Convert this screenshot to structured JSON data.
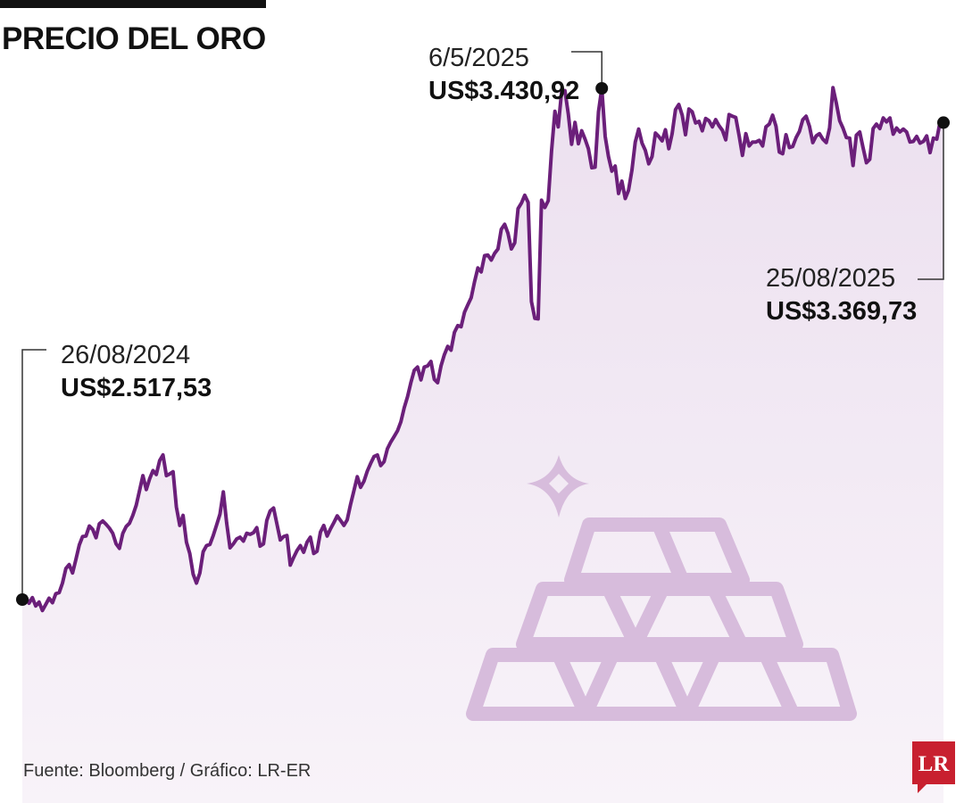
{
  "header": {
    "title": "PRECIO DEL ORO"
  },
  "annotations": {
    "start": {
      "date": "26/08/2024",
      "value": "US$2.517,53"
    },
    "peak": {
      "date": "6/5/2025",
      "value": "US$3.430,92"
    },
    "end": {
      "date": "25/08/2025",
      "value": "US$3.369,73"
    }
  },
  "footer": {
    "source": "Fuente: Bloomberg / Gráfico: LR-ER",
    "logo_text": "LR"
  },
  "colors": {
    "line": "#6b1f7a",
    "area_top": "#ece0ef",
    "area_bottom": "#f8f3f9",
    "illustration": "#d7bcdc",
    "logo": "#c8202f"
  },
  "chart_data": {
    "type": "area",
    "title": "PRECIO DEL ORO",
    "xlabel": "",
    "ylabel": "",
    "ylim": [
      2300,
      3500
    ],
    "grid": false,
    "legend": "none",
    "series": [
      {
        "values": [
          2517.53,
          2523,
          2511,
          2521,
          2506,
          2513,
          2498,
          2509,
          2520,
          2512,
          2528,
          2530,
          2547,
          2573,
          2580,
          2565,
          2589,
          2615,
          2630,
          2631,
          2649,
          2643,
          2628,
          2653,
          2658,
          2652,
          2645,
          2636,
          2617,
          2609,
          2636,
          2648,
          2654,
          2668,
          2686,
          2712,
          2739,
          2714,
          2733,
          2748,
          2741,
          2766,
          2776,
          2739,
          2742,
          2746,
          2683,
          2650,
          2668,
          2620,
          2600,
          2563,
          2547,
          2565,
          2603,
          2614,
          2616,
          2632,
          2651,
          2670,
          2710,
          2655,
          2610,
          2617,
          2626,
          2629,
          2622,
          2636,
          2634,
          2637,
          2646,
          2613,
          2617,
          2659,
          2676,
          2681,
          2653,
          2624,
          2630,
          2632,
          2579,
          2593,
          2605,
          2614,
          2602,
          2620,
          2629,
          2600,
          2604,
          2638,
          2650,
          2631,
          2644,
          2655,
          2667,
          2659,
          2650,
          2660,
          2688,
          2712,
          2737,
          2718,
          2729,
          2747,
          2761,
          2773,
          2776,
          2757,
          2764,
          2787,
          2799,
          2809,
          2819,
          2835,
          2860,
          2880,
          2905,
          2927,
          2933,
          2910,
          2933,
          2935,
          2943,
          2911,
          2905,
          2935,
          2955,
          2970,
          2963,
          2995,
          3007,
          3005,
          3031,
          3044,
          3057,
          3085,
          3110,
          3103,
          3132,
          3133,
          3124,
          3136,
          3144,
          3179,
          3188,
          3172,
          3144,
          3155,
          3216,
          3226,
          3240,
          3227,
          3050,
          3020,
          3019,
          3231,
          3218,
          3230,
          3319,
          3390,
          3362,
          3425,
          3427,
          3385,
          3331,
          3370,
          3332,
          3355,
          3340,
          3323,
          3289,
          3290,
          3389,
          3430.92,
          3345,
          3309,
          3283,
          3292,
          3243,
          3265,
          3234,
          3249,
          3285,
          3335,
          3358,
          3333,
          3320,
          3296,
          3309,
          3351,
          3345,
          3337,
          3357,
          3323,
          3350,
          3393,
          3402,
          3383,
          3348,
          3394,
          3389,
          3369,
          3372,
          3355,
          3377,
          3373,
          3362,
          3375,
          3364,
          3356,
          3339,
          3384,
          3381,
          3379,
          3346,
          3311,
          3350,
          3328,
          3335,
          3335,
          3338,
          3328,
          3362,
          3367,
          3383,
          3363,
          3317,
          3314,
          3348,
          3325,
          3327,
          3343,
          3354,
          3375,
          3381,
          3363,
          3334,
          3346,
          3350,
          3340,
          3334,
          3360,
          3432,
          3405,
          3373,
          3360,
          3343,
          3342,
          3293,
          3347,
          3353,
          3325,
          3298,
          3304,
          3359,
          3367,
          3359,
          3378,
          3371,
          3378,
          3349,
          3360,
          3353,
          3358,
          3353,
          3335,
          3336,
          3345,
          3333,
          3336,
          3346,
          3316,
          3342,
          3340,
          3371,
          3369.73
        ]
      }
    ]
  }
}
